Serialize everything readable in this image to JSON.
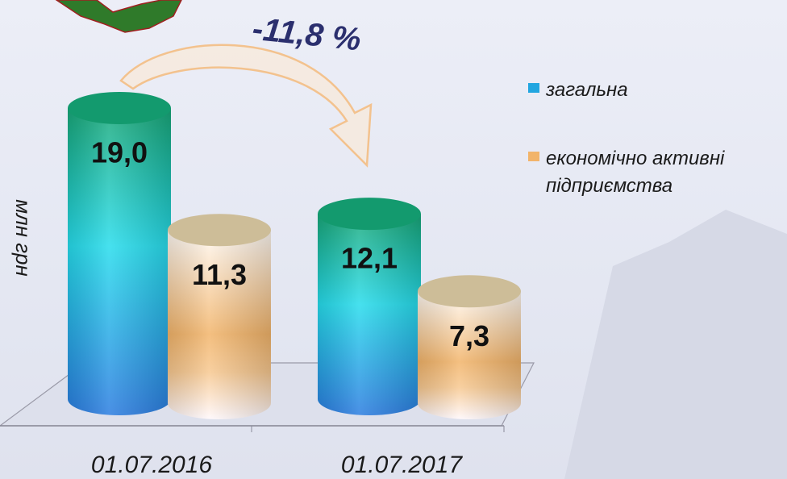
{
  "chart_data": {
    "type": "bar",
    "y_label": "млн грн",
    "annotation": "-11,8 %",
    "categories": [
      "01.07.2016",
      "01.07.2017"
    ],
    "series": [
      {
        "name": "загальна",
        "color": "#22a6e0",
        "values": [
          19.0,
          12.1
        ],
        "value_labels": [
          "19,0",
          "12,1"
        ]
      },
      {
        "name": "економічно активні підприємства",
        "color": "#f2b46a",
        "values": [
          11.3,
          7.3
        ],
        "value_labels": [
          "11,3",
          "7,3"
        ]
      }
    ],
    "ylim": [
      0,
      20
    ]
  }
}
